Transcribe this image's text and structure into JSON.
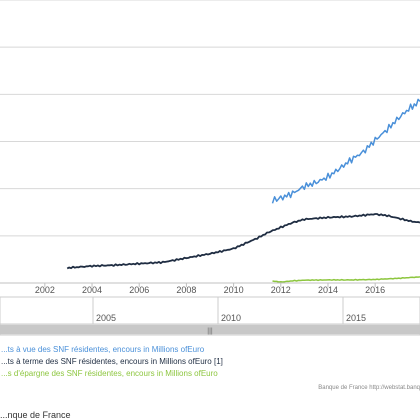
{
  "chart_data": {
    "type": "line",
    "title": "",
    "xlabel": "",
    "ylabel": "",
    "xlim": [
      2000.1,
      2017.9
    ],
    "ylim": [
      0,
      600000
    ],
    "x_ticks": [
      "2002",
      "2004",
      "2006",
      "2008",
      "2010",
      "2012",
      "2014",
      "2016"
    ],
    "grid": true,
    "series": [
      {
        "name": "...ts à vue des SNF résidentes, encours in Millions ofEuro",
        "color": "#4a90d9",
        "x": [
          2011.65,
          2012.0,
          2012.5,
          2013.0,
          2013.5,
          2014.0,
          2014.5,
          2015.0,
          2015.5,
          2016.0,
          2016.5,
          2017.0,
          2017.5,
          2017.9
        ],
        "y": [
          175000,
          180000,
          190000,
          205000,
          213000,
          225000,
          243000,
          262000,
          278000,
          303000,
          325000,
          350000,
          372000,
          385000
        ]
      },
      {
        "name": "...ts à terme des SNF résidentes, encours in Millions ofEuro [1]",
        "color": "#1f2d42",
        "x": [
          2002.95,
          2004.0,
          2005.0,
          2006.0,
          2007.0,
          2008.0,
          2009.0,
          2010.0,
          2011.0,
          2011.5,
          2012.0,
          2012.5,
          2013.0,
          2014.0,
          2015.0,
          2016.0,
          2016.5,
          2017.0,
          2017.5,
          2017.9
        ],
        "y": [
          32000,
          36000,
          38000,
          41000,
          44000,
          53000,
          62000,
          73000,
          95000,
          108000,
          118000,
          128000,
          135000,
          139000,
          141000,
          146000,
          143000,
          137000,
          131000,
          128000
        ]
      },
      {
        "name": "...s d'épargne des SNF résidentes, encours in Millions ofEuro",
        "color": "#8dc63f",
        "x": [
          2011.65,
          2012.0,
          2012.5,
          2013.0,
          2014.0,
          2015.0,
          2016.0,
          2017.0,
          2017.9
        ],
        "y": [
          4000,
          2000,
          4500,
          6000,
          6500,
          6500,
          7500,
          10000,
          13000
        ]
      }
    ]
  },
  "navigator": {
    "labels": [
      "2005",
      "2010",
      "2015"
    ],
    "scroll_grip": "|||"
  },
  "credits": "Banque de France http://webstat.banq",
  "source": "...nque de France"
}
